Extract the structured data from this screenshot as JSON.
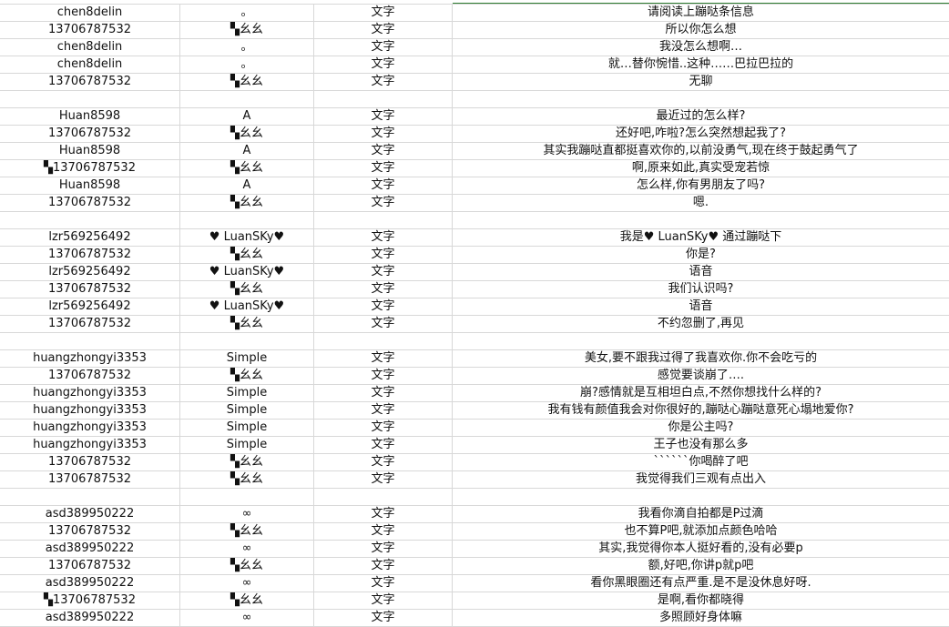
{
  "accent_color": "#2e7d32",
  "rows": [
    [
      "chen8delin",
      "。",
      "文字",
      "请阅读上蹦哒条信息"
    ],
    [
      "13706787532",
      "▚幺幺",
      "文字",
      "所以你怎么想"
    ],
    [
      "chen8delin",
      "。",
      "文字",
      "我没怎么想啊…"
    ],
    [
      "chen8delin",
      "。",
      "文字",
      "就…替你惋惜..这种……巴拉巴拉的"
    ],
    [
      "13706787532",
      "▚幺幺",
      "文字",
      "无聊"
    ],
    [
      "",
      "",
      "",
      ""
    ],
    [
      "Huan8598",
      "A",
      "文字",
      "最近过的怎么样?"
    ],
    [
      "13706787532",
      "▚幺幺",
      "文字",
      "还好吧,咋啦?怎么突然想起我了?"
    ],
    [
      "Huan8598",
      "A",
      "文字",
      "其实我蹦哒直都挺喜欢你的,以前没勇气,现在终于鼓起勇气了"
    ],
    [
      "▚13706787532",
      "▚幺幺",
      "文字",
      "啊,原来如此,真实受宠若惊"
    ],
    [
      "Huan8598",
      "A",
      "文字",
      "怎么样,你有男朋友了吗?"
    ],
    [
      "13706787532",
      "▚幺幺",
      "文字",
      "嗯."
    ],
    [
      "",
      "",
      "",
      ""
    ],
    [
      "lzr569256492",
      "♥ LuanSKy♥",
      "文字",
      "我是♥ LuanSKy♥ 通过蹦哒下"
    ],
    [
      "13706787532",
      "▚幺幺",
      "文字",
      "你是?"
    ],
    [
      "lzr569256492",
      "♥ LuanSKy♥",
      "文字",
      "语音"
    ],
    [
      "13706787532",
      "▚幺幺",
      "文字",
      "我们认识吗?"
    ],
    [
      "lzr569256492",
      "♥ LuanSKy♥",
      "文字",
      "语音"
    ],
    [
      "13706787532",
      "▚幺幺",
      "文字",
      "不约忽删了,再见"
    ],
    [
      "",
      "",
      "",
      ""
    ],
    [
      "huangzhongyi3353",
      "Simple",
      "文字",
      "美女,要不跟我过得了我喜欢你.你不会吃亏的"
    ],
    [
      "13706787532",
      "▚幺幺",
      "文字",
      "感觉要谈崩了…."
    ],
    [
      "huangzhongyi3353",
      "Simple",
      "文字",
      "崩?感情就是互相坦白点,不然你想找什么样的?"
    ],
    [
      "huangzhongyi3353",
      "Simple",
      "文字",
      "我有钱有颜值我会对你很好的,蹦哒心蹦哒意死心塌地爱你?"
    ],
    [
      "huangzhongyi3353",
      "Simple",
      "文字",
      "你是公主吗?"
    ],
    [
      "huangzhongyi3353",
      "Simple",
      "文字",
      "王子也没有那么多"
    ],
    [
      "13706787532",
      "▚幺幺",
      "文字",
      "``````你喝醉了吧"
    ],
    [
      "13706787532",
      "▚幺幺",
      "文字",
      "我觉得我们三观有点出入"
    ],
    [
      "",
      "",
      "",
      ""
    ],
    [
      "asd389950222",
      "∞",
      "文字",
      "我看你滴自拍都是P过滴"
    ],
    [
      "13706787532",
      "▚幺幺",
      "文字",
      "也不算P吧,就添加点颜色哈哈"
    ],
    [
      "asd389950222",
      "∞",
      "文字",
      "其实,我觉得你本人挺好看的,没有必要p"
    ],
    [
      "13706787532",
      "▚幺幺",
      "文字",
      "额,好吧,你讲p就p吧"
    ],
    [
      "asd389950222",
      "∞",
      "文字",
      "看你黑眼圈还有点严重.是不是没休息好呀."
    ],
    [
      "▚13706787532",
      "▚幺幺",
      "文字",
      "是啊,看你都晓得"
    ],
    [
      "asd389950222",
      "∞",
      "文字",
      "多照顾好身体嘛"
    ]
  ]
}
